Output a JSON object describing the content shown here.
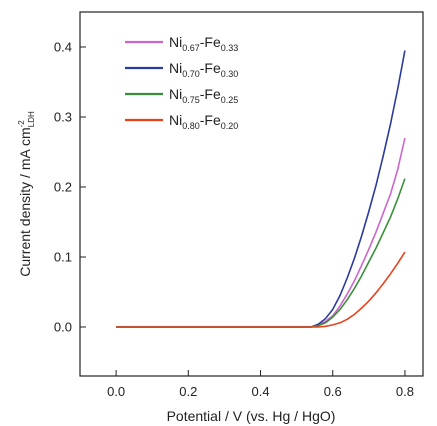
{
  "chart_data": {
    "type": "line",
    "xlabel": "Potential / V (vs. Hg / HgO)",
    "ylabel_main": "Current density / mA cm",
    "ylabel_sup": "-2",
    "ylabel_sub": "LDH",
    "xlim": [
      -0.1,
      0.85
    ],
    "ylim": [
      -0.07,
      0.45
    ],
    "xticks": [
      0.0,
      0.2,
      0.4,
      0.6,
      0.8
    ],
    "xtick_labels": [
      "0.0",
      "0.2",
      "0.4",
      "0.6",
      "0.8"
    ],
    "yticks": [
      0.0,
      0.1,
      0.2,
      0.3,
      0.4
    ],
    "ytick_labels": [
      "0.0",
      "0.1",
      "0.2",
      "0.3",
      "0.4"
    ],
    "grid": false,
    "legend_placement": "top-left",
    "series": [
      {
        "name": "Ni0.67-Fe0.33",
        "label_a": "Ni",
        "sub_a": "0.67",
        "label_b": "-Fe",
        "sub_b": "0.33",
        "color": "#cc66cc",
        "x": [
          0.0,
          0.54,
          0.56,
          0.58,
          0.6,
          0.62,
          0.64,
          0.66,
          0.68,
          0.7,
          0.72,
          0.74,
          0.76,
          0.78,
          0.8
        ],
        "y": [
          0.0,
          0.0,
          0.003,
          0.008,
          0.016,
          0.03,
          0.047,
          0.066,
          0.088,
          0.111,
          0.136,
          0.163,
          0.19,
          0.225,
          0.27
        ]
      },
      {
        "name": "Ni0.70-Fe0.30",
        "label_a": "Ni",
        "sub_a": "0.70",
        "label_b": "-Fe",
        "sub_b": "0.30",
        "color": "#2b3a9e",
        "x": [
          0.0,
          0.54,
          0.56,
          0.58,
          0.6,
          0.62,
          0.64,
          0.66,
          0.68,
          0.7,
          0.72,
          0.74,
          0.76,
          0.78,
          0.8
        ],
        "y": [
          0.0,
          0.0,
          0.004,
          0.012,
          0.025,
          0.045,
          0.07,
          0.098,
          0.13,
          0.165,
          0.203,
          0.245,
          0.29,
          0.34,
          0.395
        ]
      },
      {
        "name": "Ni0.75-Fe0.25",
        "label_a": "Ni",
        "sub_a": "0.75",
        "label_b": "-Fe",
        "sub_b": "0.25",
        "color": "#3a8f3a",
        "x": [
          0.0,
          0.54,
          0.56,
          0.58,
          0.6,
          0.62,
          0.64,
          0.66,
          0.68,
          0.7,
          0.72,
          0.74,
          0.76,
          0.78,
          0.8
        ],
        "y": [
          0.0,
          0.0,
          0.002,
          0.006,
          0.014,
          0.025,
          0.039,
          0.055,
          0.073,
          0.093,
          0.113,
          0.135,
          0.157,
          0.183,
          0.212
        ]
      },
      {
        "name": "Ni0.80-Fe0.20",
        "label_a": "Ni",
        "sub_a": "0.80",
        "label_b": "-Fe",
        "sub_b": "0.20",
        "color": "#e8421c",
        "x": [
          0.0,
          0.56,
          0.58,
          0.6,
          0.62,
          0.64,
          0.66,
          0.68,
          0.7,
          0.72,
          0.74,
          0.76,
          0.78,
          0.8
        ],
        "y": [
          0.0,
          0.0,
          0.001,
          0.003,
          0.006,
          0.011,
          0.018,
          0.027,
          0.037,
          0.049,
          0.062,
          0.076,
          0.091,
          0.107
        ]
      }
    ]
  }
}
